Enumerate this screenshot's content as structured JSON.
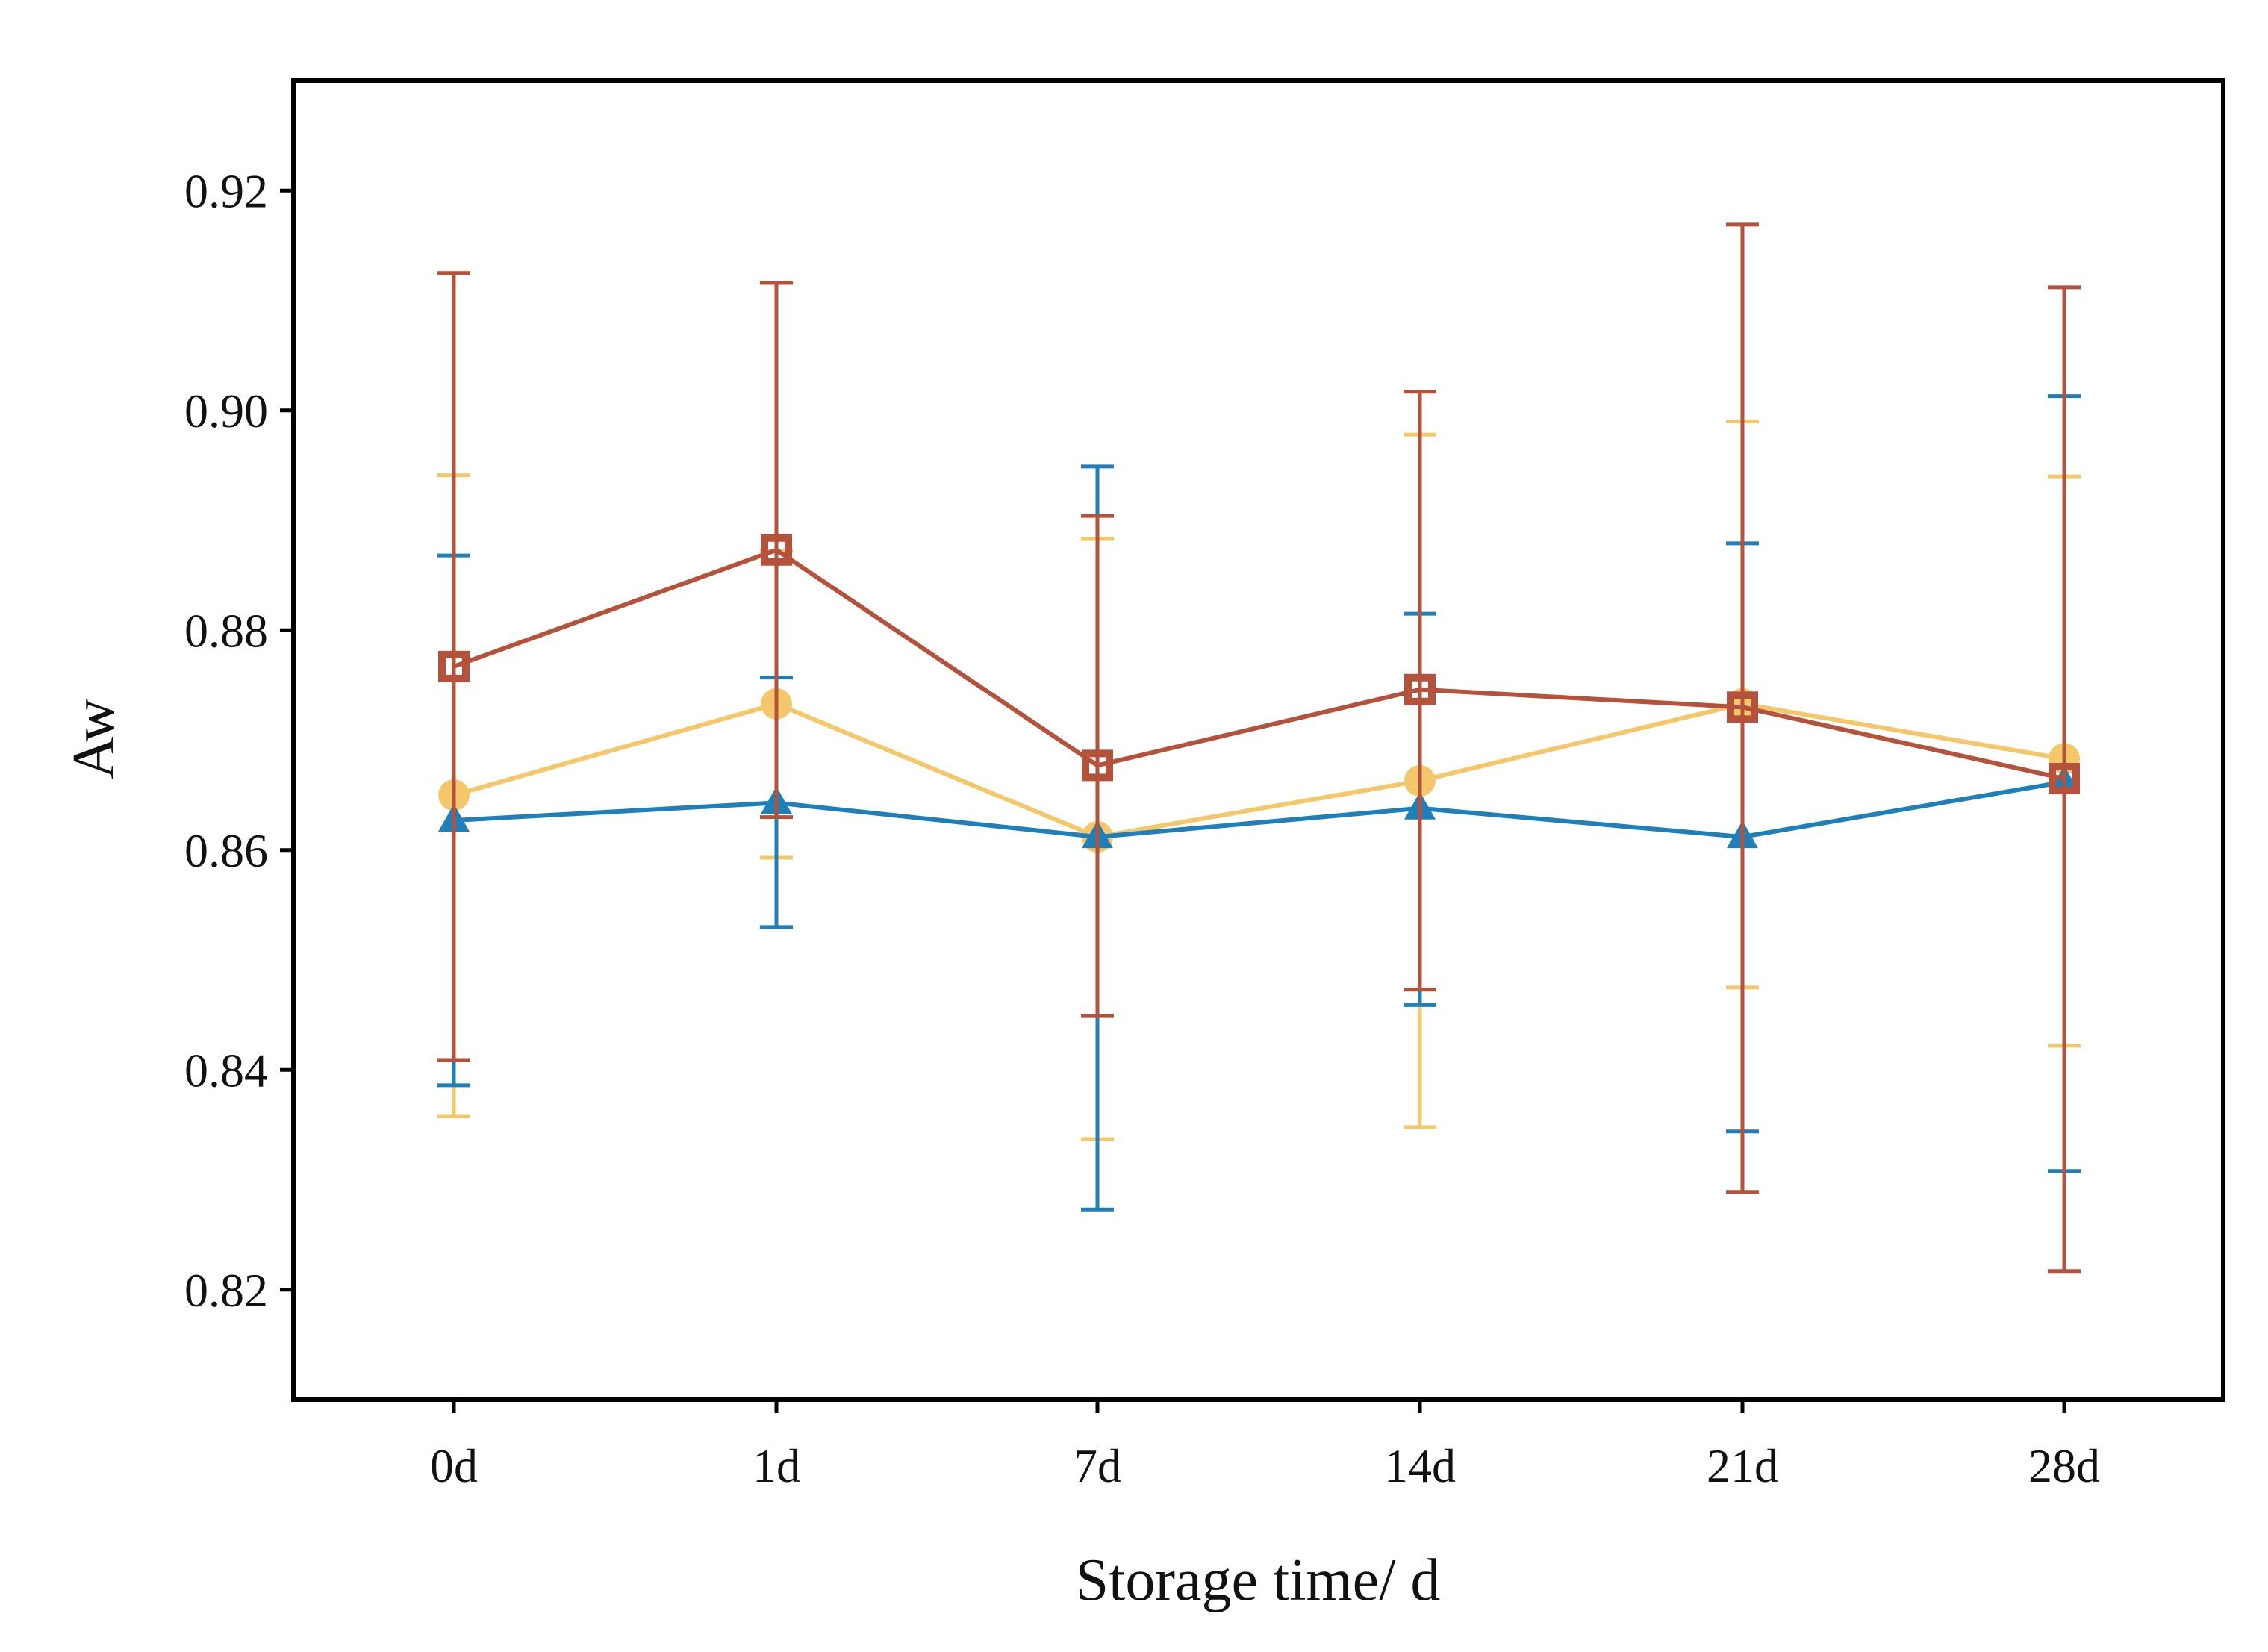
{
  "chart_data": {
    "type": "line",
    "title": "",
    "xlabel": "Storage time/ d",
    "ylabel": "Aw",
    "categories": [
      "0d",
      "1d",
      "7d",
      "14d",
      "21d",
      "28d"
    ],
    "ylim": [
      0.81,
      0.93
    ],
    "yticks": [
      0.82,
      0.84,
      0.86,
      0.88,
      0.9,
      0.92
    ],
    "ytick_labels": [
      "0.82",
      "0.84",
      "0.86",
      "0.88",
      "0.90",
      "0.92"
    ],
    "grid": false,
    "legend": "none",
    "series": [
      {
        "name": "circle series",
        "marker": "circle",
        "color": "#F5C76B",
        "values": [
          0.865,
          0.8733,
          0.8612,
          0.8663,
          0.8733,
          0.8683
        ],
        "err_low": [
          0.8358,
          0.8593,
          0.8337,
          0.8348,
          0.8475,
          0.8422
        ],
        "err_high": [
          0.8941,
          0.8872,
          0.8883,
          0.8978,
          0.899,
          0.894
        ]
      },
      {
        "name": "triangle series",
        "marker": "triangle",
        "color": "#1F7FB8",
        "values": [
          0.8627,
          0.8643,
          0.8612,
          0.8638,
          0.8612,
          0.8662
        ],
        "err_low": [
          0.8386,
          0.853,
          0.8273,
          0.8459,
          0.8344,
          0.8308
        ],
        "err_high": [
          0.8868,
          0.8757,
          0.8949,
          0.8815,
          0.8879,
          0.9013
        ]
      },
      {
        "name": "square series",
        "marker": "square",
        "color": "#B5523B",
        "values": [
          0.8767,
          0.8873,
          0.8677,
          0.8746,
          0.873,
          0.8665
        ],
        "err_low": [
          0.8409,
          0.863,
          0.8449,
          0.8473,
          0.8289,
          0.8217
        ],
        "err_high": [
          0.9125,
          0.9116,
          0.8904,
          0.9017,
          0.9169,
          0.9112
        ]
      }
    ]
  }
}
